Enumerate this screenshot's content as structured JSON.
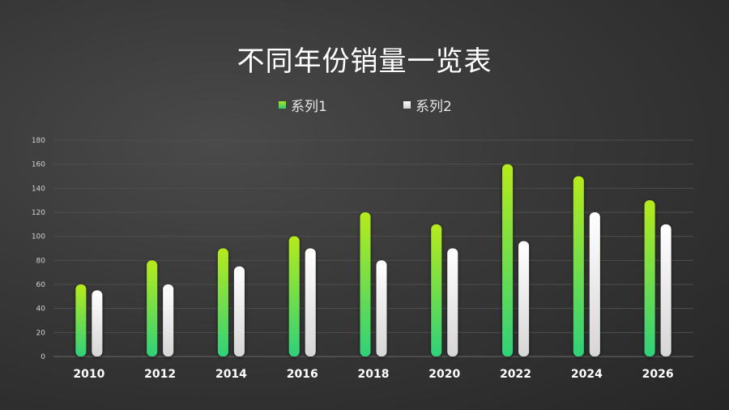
{
  "chart_data": {
    "type": "bar",
    "title": "不同年份销量一览表",
    "categories": [
      "2010",
      "2012",
      "2014",
      "2016",
      "2018",
      "2020",
      "2022",
      "2024",
      "2026"
    ],
    "series": [
      {
        "name": "系列1",
        "values": [
          60,
          80,
          90,
          100,
          120,
          110,
          160,
          150,
          130
        ],
        "color_top": "#b6ea1c",
        "color_bottom": "#2fd17a"
      },
      {
        "name": "系列2",
        "values": [
          55,
          60,
          75,
          90,
          80,
          90,
          96,
          120,
          110
        ],
        "color_top": "#ffffff",
        "color_bottom": "#d6d6d6"
      }
    ],
    "ylim": [
      0,
      180
    ],
    "yticks": [
      0,
      20,
      40,
      60,
      80,
      100,
      120,
      140,
      160,
      180
    ],
    "grid": true,
    "legend_position": "top-center",
    "xlabel": "",
    "ylabel": ""
  }
}
